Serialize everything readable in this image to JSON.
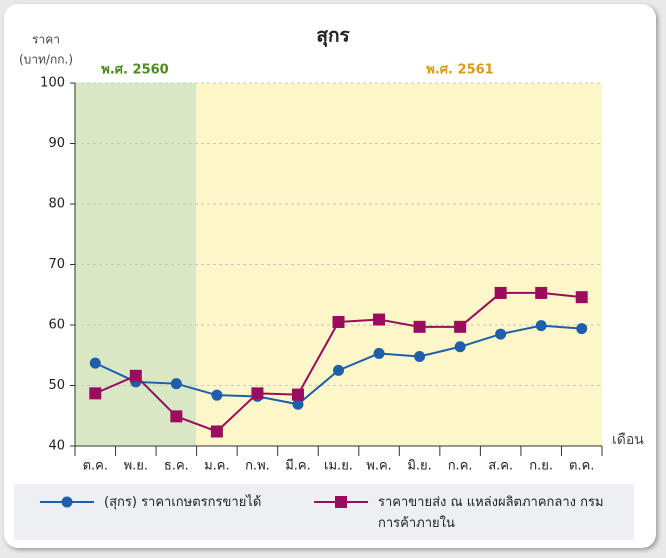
{
  "chart_data": {
    "type": "line",
    "title": "สุกร",
    "y_label": "ราคา",
    "y_unit": "(บาท/กก.)",
    "x_label": "เดือน",
    "periods": [
      "พ.ศ. 2560",
      "พ.ศ. 2561"
    ],
    "categories": [
      "ต.ค.",
      "พ.ย.",
      "ธ.ค.",
      "ม.ค.",
      "ก.พ.",
      "มี.ค.",
      "เม.ย.",
      "พ.ค.",
      "มิ.ย.",
      "ก.ค.",
      "ส.ค.",
      "ก.ย.",
      "ต.ค."
    ],
    "series": [
      {
        "name": "(สุกร) ราคาเกษตรกรขายได้",
        "color": "#1f5eab",
        "marker": "circle",
        "values": [
          53.7,
          50.6,
          50.3,
          48.4,
          48.2,
          46.9,
          52.5,
          55.3,
          54.8,
          56.4,
          58.5,
          59.9,
          59.4
        ]
      },
      {
        "name": "ราคาขายส่ง ณ แหล่งผลิตภาคกลาง กรมการค้าภายใน",
        "color": "#9b0c5e",
        "marker": "square",
        "values": [
          48.7,
          51.6,
          44.9,
          42.4,
          48.7,
          48.5,
          60.5,
          60.9,
          59.7,
          59.7,
          65.3,
          65.3,
          64.6
        ]
      }
    ],
    "ylim": [
      40,
      100
    ],
    "yticks": [
      40,
      50,
      60,
      70,
      80,
      90,
      100
    ],
    "grid": true
  }
}
